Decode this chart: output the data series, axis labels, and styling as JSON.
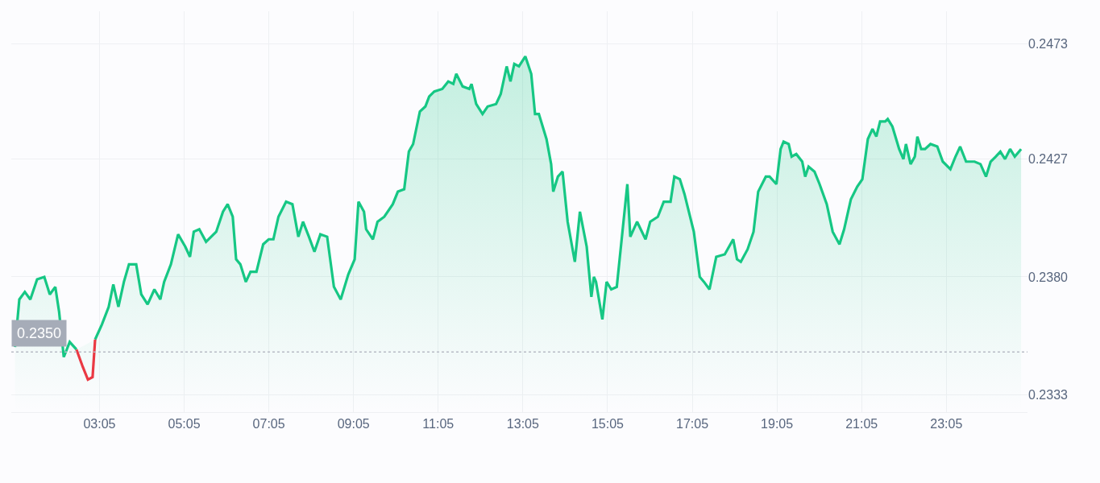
{
  "chart_data": {
    "type": "area",
    "x": [
      1.087,
      1.19,
      1.32,
      1.45,
      1.61,
      1.78,
      1.91,
      2.04,
      2.13,
      2.24,
      2.38,
      2.54,
      2.69,
      2.81,
      2.92,
      2.98,
      3.14,
      3.3,
      3.41,
      3.53,
      3.66,
      3.78,
      3.95,
      4.07,
      4.22,
      4.38,
      4.52,
      4.61,
      4.77,
      4.94,
      5.11,
      5.22,
      5.31,
      5.44,
      5.6,
      5.84,
      6.0,
      6.11,
      6.23,
      6.31,
      6.41,
      6.54,
      6.65,
      6.79,
      6.95,
      7.08,
      7.19,
      7.31,
      7.49,
      7.64,
      7.78,
      7.89,
      8.03,
      8.16,
      8.3,
      8.46,
      8.62,
      8.78,
      8.96,
      9.11,
      9.2,
      9.33,
      9.38,
      9.54,
      9.65,
      9.81,
      10.01,
      10.13,
      10.28,
      10.39,
      10.49,
      10.65,
      10.78,
      10.87,
      10.99,
      11.18,
      11.32,
      11.44,
      11.51,
      11.66,
      11.82,
      11.87,
      11.98,
      12.13,
      12.25,
      12.45,
      12.56,
      12.7,
      12.79,
      12.88,
      12.99,
      13.14,
      13.28,
      13.37,
      13.46,
      13.64,
      13.75,
      13.8,
      13.91,
      14.02,
      14.14,
      14.31,
      14.43,
      14.59,
      14.7,
      14.76,
      14.81,
      14.96,
      15.06,
      15.17,
      15.3,
      15.55,
      15.62,
      15.78,
      15.98,
      16.09,
      16.27,
      16.41,
      16.57,
      16.66,
      16.79,
      16.9,
      17.12,
      17.26,
      17.36,
      17.49,
      17.65,
      17.85,
      18.05,
      18.14,
      18.23,
      18.39,
      18.53,
      18.64,
      18.82,
      18.91,
      19.07,
      19.17,
      19.24,
      19.36,
      19.43,
      19.54,
      19.68,
      19.75,
      19.83,
      19.97,
      20.09,
      20.26,
      20.4,
      20.56,
      20.67,
      20.83,
      20.98,
      21.1,
      21.23,
      21.34,
      21.43,
      21.52,
      21.64,
      21.7,
      21.81,
      21.97,
      22.07,
      22.13,
      22.24,
      22.34,
      22.4,
      22.49,
      22.58,
      22.71,
      22.87,
      23.0,
      23.18,
      23.3,
      23.41,
      23.55,
      23.75,
      23.89,
      24.02,
      24.13,
      24.25,
      24.36,
      24.47,
      24.59,
      24.7,
      24.85
    ],
    "series": [
      {
        "color": "#16c784",
        "values": [
          0.2352,
          0.2371,
          0.2374,
          0.2371,
          0.2379,
          0.238,
          0.2373,
          0.2376,
          0.2366,
          0.2348,
          0.2354,
          0.2351,
          null,
          null,
          null,
          0.2355,
          0.2361,
          0.2368,
          0.2377,
          0.2368,
          0.2378,
          0.2385,
          0.2385,
          0.2373,
          0.2369,
          0.2375,
          0.2371,
          0.2378,
          0.2385,
          0.2397,
          0.2392,
          0.2388,
          0.2398,
          0.2399,
          0.2394,
          0.2398,
          0.2406,
          0.2409,
          0.2404,
          0.2387,
          0.2385,
          0.2378,
          0.2382,
          0.2382,
          0.2393,
          0.2395,
          0.2395,
          0.2404,
          0.241,
          0.2409,
          0.2396,
          0.2402,
          0.2396,
          0.239,
          0.2397,
          0.2396,
          0.2376,
          0.2371,
          0.2381,
          0.2387,
          0.241,
          0.2406,
          0.2399,
          0.2395,
          0.2402,
          0.2404,
          0.2409,
          0.2414,
          0.2415,
          0.243,
          0.2433,
          0.2446,
          0.2448,
          0.2452,
          0.2454,
          0.2455,
          0.2458,
          0.2457,
          0.2461,
          0.2456,
          0.2455,
          0.2457,
          0.2449,
          0.2445,
          0.2448,
          0.2449,
          0.2453,
          0.2464,
          0.2458,
          0.2465,
          0.2464,
          0.2468,
          0.2461,
          0.2445,
          0.2445,
          0.2435,
          0.2425,
          0.2414,
          0.242,
          0.2422,
          0.2402,
          0.2386,
          0.2406,
          0.2392,
          0.2372,
          0.238,
          0.2378,
          0.2363,
          0.2378,
          0.2375,
          0.2376,
          0.2417,
          0.2396,
          0.2402,
          0.2395,
          0.2402,
          0.2404,
          0.241,
          0.241,
          0.242,
          0.2419,
          0.2413,
          0.2398,
          0.238,
          0.2378,
          0.2375,
          0.2388,
          0.2389,
          0.2395,
          0.2387,
          0.2386,
          0.2391,
          0.2398,
          0.2414,
          0.242,
          0.242,
          0.2417,
          0.2431,
          0.2434,
          0.2433,
          0.2428,
          0.2429,
          0.2426,
          0.242,
          0.2424,
          0.2422,
          0.2417,
          0.2409,
          0.2398,
          0.2393,
          0.2399,
          0.2411,
          0.2416,
          0.2419,
          0.2435,
          0.2439,
          0.2436,
          0.2442,
          0.2442,
          0.2443,
          0.244,
          0.2431,
          0.2427,
          0.2433,
          0.2425,
          0.2428,
          0.2436,
          0.2431,
          0.2431,
          0.2433,
          0.2432,
          0.2426,
          0.2423,
          0.2428,
          0.2432,
          0.2426,
          0.2426,
          0.2425,
          0.242,
          0.2426,
          0.2428,
          0.243,
          0.2427,
          0.2431,
          0.2428,
          0.2431
        ]
      },
      {
        "type": "line",
        "color": "#ea3943",
        "values": [
          null,
          null,
          null,
          null,
          null,
          null,
          null,
          null,
          null,
          null,
          null,
          0.2351,
          0.2344,
          0.2339,
          0.234,
          0.2355,
          null,
          null,
          null,
          null,
          null,
          null,
          null,
          null,
          null,
          null,
          null,
          null,
          null,
          null,
          null,
          null,
          null,
          null,
          null,
          null,
          null,
          null,
          null,
          null,
          null,
          null,
          null,
          null,
          null,
          null,
          null,
          null,
          null,
          null,
          null,
          null,
          null,
          null,
          null,
          null,
          null,
          null,
          null,
          null,
          null,
          null,
          null,
          null,
          null,
          null,
          null,
          null,
          null,
          null,
          null,
          null,
          null,
          null,
          null,
          null,
          null,
          null,
          null,
          null,
          null,
          null,
          null,
          null,
          null,
          null,
          null,
          null,
          null,
          null,
          null,
          null,
          null,
          null,
          null,
          null,
          null,
          null,
          null,
          null,
          null,
          null,
          null,
          null,
          null,
          null,
          null,
          null,
          null,
          null,
          null,
          null,
          null,
          null,
          null,
          null,
          null,
          null,
          null,
          null,
          null,
          null,
          null,
          null,
          null,
          null,
          null,
          null,
          null,
          null,
          null,
          null,
          null,
          null,
          null,
          null,
          null,
          null,
          null,
          null,
          null,
          null,
          null,
          null,
          null,
          null,
          null,
          null,
          null,
          null,
          null,
          null,
          null,
          null,
          null,
          null,
          null,
          null,
          null,
          null,
          null,
          null,
          null,
          null,
          null,
          null,
          null,
          null,
          null,
          null,
          null,
          null,
          null,
          null,
          null,
          null,
          null,
          null,
          null,
          null,
          null,
          null,
          null,
          null,
          null,
          null
        ]
      }
    ],
    "xlim": [
      1.0,
      25.0
    ],
    "xticks": [
      {
        "value": 3.0833,
        "label": "03:05"
      },
      {
        "value": 5.0833,
        "label": "05:05"
      },
      {
        "value": 7.0833,
        "label": "07:05"
      },
      {
        "value": 9.0833,
        "label": "09:05"
      },
      {
        "value": 11.0833,
        "label": "11:05"
      },
      {
        "value": 13.0833,
        "label": "13:05"
      },
      {
        "value": 15.0833,
        "label": "15:05"
      },
      {
        "value": 17.0833,
        "label": "17:05"
      },
      {
        "value": 19.0833,
        "label": "19:05"
      },
      {
        "value": 21.0833,
        "label": "21:05"
      },
      {
        "value": 23.0833,
        "label": "23:05"
      }
    ],
    "ylim": [
      0.2326,
      0.2486
    ],
    "yticks": [
      0.2333,
      {
        "value": 0.238,
        "label": "0.2380"
      },
      0.2427,
      0.2473
    ],
    "ref_lines": [
      {
        "axis": "y",
        "value": 0.235,
        "label": "0.2350",
        "color": "#b8bcc6",
        "line_style": "dotted"
      }
    ],
    "grid": true,
    "line_style": "solid"
  }
}
